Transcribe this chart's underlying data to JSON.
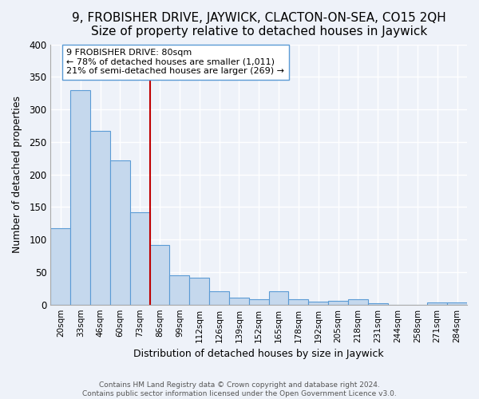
{
  "title": "9, FROBISHER DRIVE, JAYWICK, CLACTON-ON-SEA, CO15 2QH",
  "subtitle": "Size of property relative to detached houses in Jaywick",
  "xlabel": "Distribution of detached houses by size in Jaywick",
  "ylabel": "Number of detached properties",
  "bar_labels": [
    "20sqm",
    "33sqm",
    "46sqm",
    "60sqm",
    "73sqm",
    "86sqm",
    "99sqm",
    "112sqm",
    "126sqm",
    "139sqm",
    "152sqm",
    "165sqm",
    "178sqm",
    "192sqm",
    "205sqm",
    "218sqm",
    "231sqm",
    "244sqm",
    "258sqm",
    "271sqm",
    "284sqm"
  ],
  "bar_values": [
    117,
    330,
    267,
    222,
    142,
    91,
    45,
    41,
    20,
    11,
    8,
    20,
    8,
    5,
    6,
    8,
    2,
    0,
    0,
    3,
    3
  ],
  "bar_color": "#c5d8ed",
  "bar_edge_color": "#5b9bd5",
  "vline_x_pos": 4.5,
  "vline_color": "#c00000",
  "annotation_title": "9 FROBISHER DRIVE: 80sqm",
  "annotation_line1": "← 78% of detached houses are smaller (1,011)",
  "annotation_line2": "21% of semi-detached houses are larger (269) →",
  "annotation_box_color": "#ffffff",
  "annotation_box_edge": "#5b9bd5",
  "ylim": [
    0,
    400
  ],
  "yticks": [
    0,
    50,
    100,
    150,
    200,
    250,
    300,
    350,
    400
  ],
  "footer1": "Contains HM Land Registry data © Crown copyright and database right 2024.",
  "footer2": "Contains public sector information licensed under the Open Government Licence v3.0.",
  "bg_color": "#eef2f9",
  "grid_color": "#ffffff",
  "title_fontsize": 11,
  "subtitle_fontsize": 10
}
